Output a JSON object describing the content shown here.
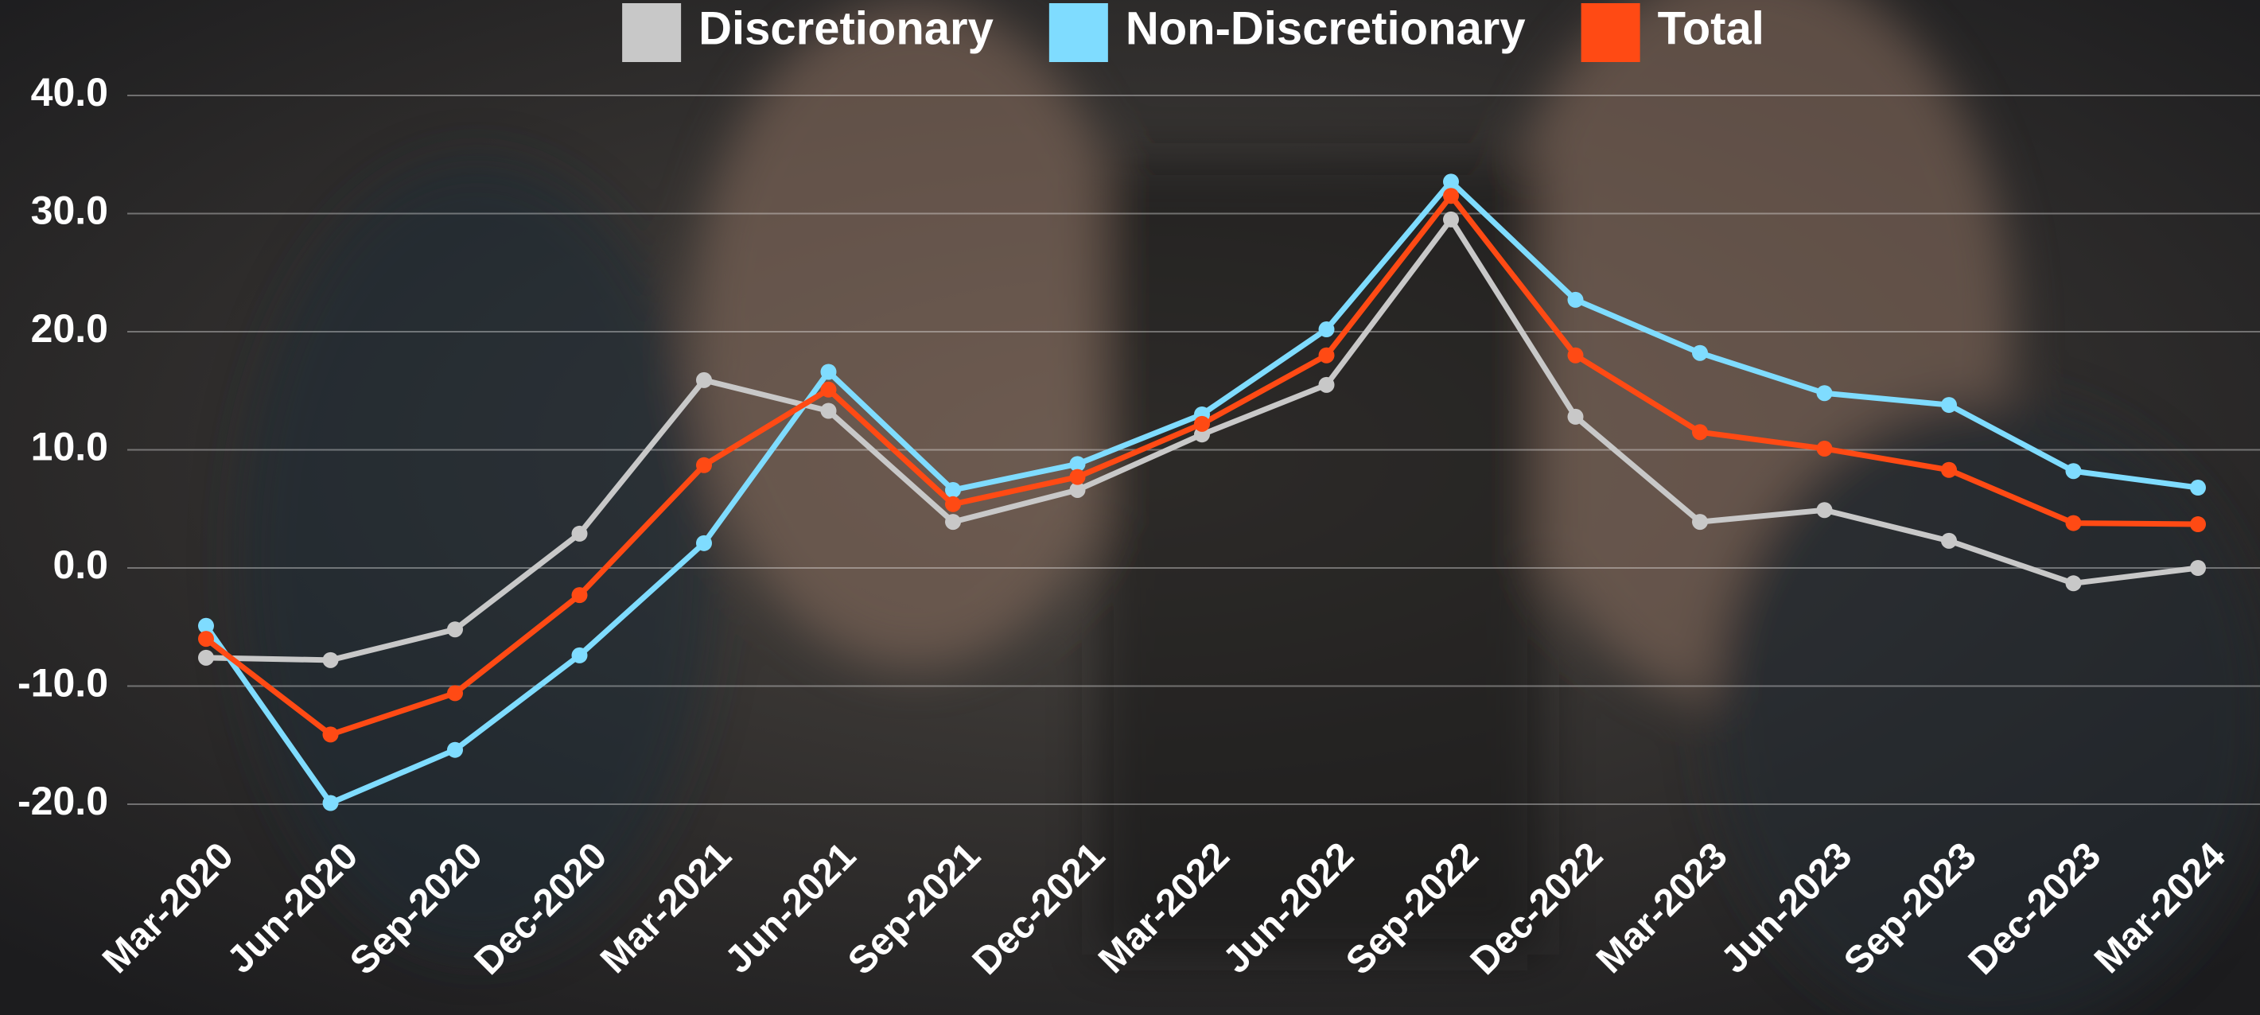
{
  "chart_data": {
    "type": "line",
    "categories": [
      "Mar-2020",
      "Jun-2020",
      "Sep-2020",
      "Dec-2020",
      "Mar-2021",
      "Jun-2021",
      "Sep-2021",
      "Dec-2021",
      "Mar-2022",
      "Jun-2022",
      "Sep-2022",
      "Dec-2022",
      "Mar-2023",
      "Jun-2023",
      "Sep-2023",
      "Dec-2023",
      "Mar-2024"
    ],
    "series": [
      {
        "name": "Discretionary",
        "color": "#c8c8c8",
        "values": [
          -7.6,
          -7.8,
          -5.2,
          2.9,
          15.9,
          13.3,
          3.9,
          6.6,
          11.3,
          15.5,
          29.5,
          12.8,
          3.9,
          4.9,
          2.3,
          -1.3,
          0.0
        ]
      },
      {
        "name": "Non-Discretionary",
        "color": "#7fdcff",
        "values": [
          -4.9,
          -19.9,
          -15.4,
          -7.4,
          2.1,
          16.6,
          6.6,
          8.8,
          13.0,
          20.2,
          32.7,
          22.7,
          18.2,
          14.8,
          13.8,
          8.2,
          6.8
        ]
      },
      {
        "name": "Total",
        "color": "#ff4a14",
        "values": [
          -6.0,
          -14.1,
          -10.6,
          -2.3,
          8.7,
          15.1,
          5.4,
          7.7,
          12.2,
          18.0,
          31.5,
          18.0,
          11.5,
          10.1,
          8.3,
          3.8,
          3.7
        ]
      }
    ],
    "ylim": [
      -20,
      40
    ],
    "yticks": [
      {
        "value": -20,
        "label": "-20.0"
      },
      {
        "value": -10,
        "label": "-10.0"
      },
      {
        "value": 0,
        "label": "0.0"
      },
      {
        "value": 10,
        "label": "10.0"
      },
      {
        "value": 20,
        "label": "20.0"
      },
      {
        "value": 30,
        "label": "30.0"
      },
      {
        "value": 40,
        "label": "40.0"
      }
    ],
    "grid": true,
    "legend": "top"
  }
}
